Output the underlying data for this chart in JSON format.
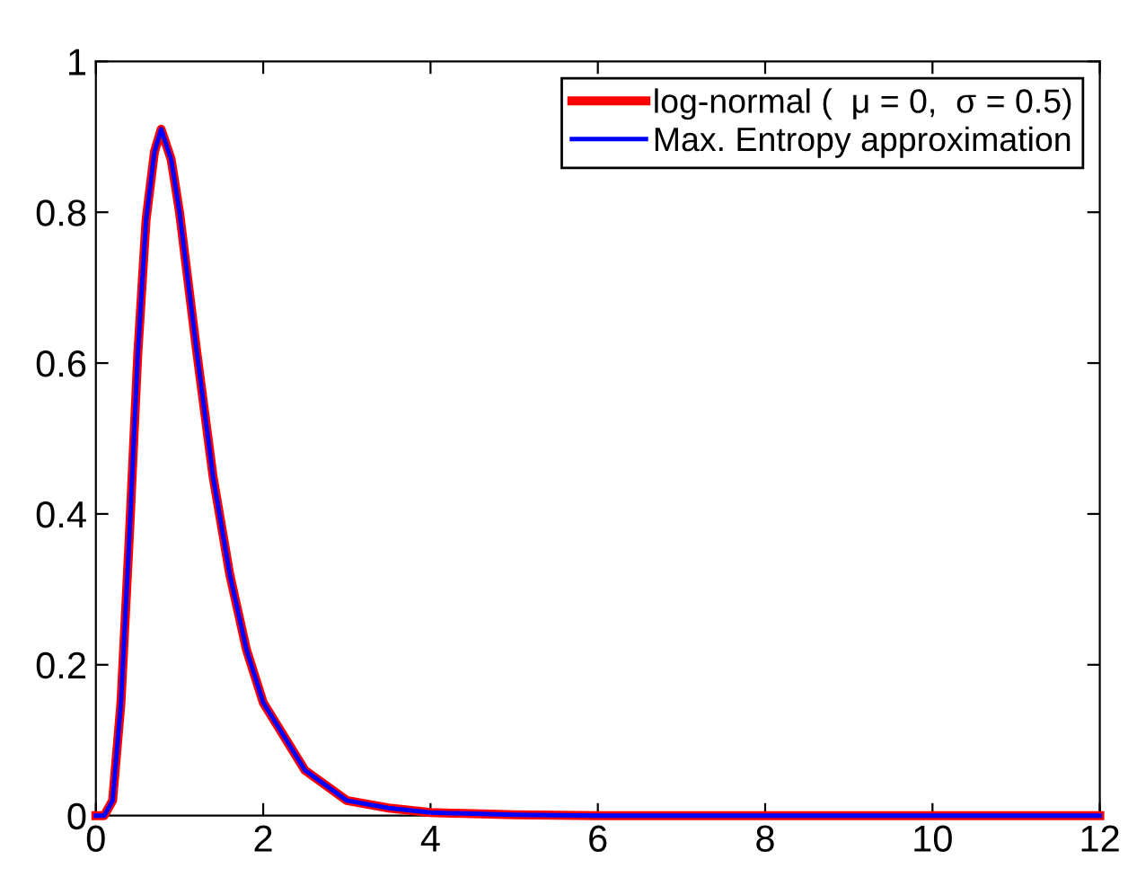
{
  "chart_data": {
    "type": "line",
    "x": [
      0,
      0.1,
      0.2,
      0.3,
      0.4,
      0.5,
      0.6,
      0.7,
      0.78,
      0.9,
      1.0,
      1.2,
      1.4,
      1.6,
      1.8,
      2.0,
      2.5,
      3.0,
      3.5,
      4.0,
      5.0,
      6.0,
      8.0,
      10.0,
      12.0
    ],
    "series": [
      {
        "name": "log-normal (  μ = 0,  σ = 0.5)",
        "color": "#ff0000",
        "values": [
          0,
          0,
          0.02,
          0.15,
          0.37,
          0.61,
          0.79,
          0.88,
          0.91,
          0.87,
          0.8,
          0.62,
          0.45,
          0.32,
          0.22,
          0.15,
          0.06,
          0.02,
          0.01,
          0.004,
          0.001,
          0,
          0,
          0,
          0
        ]
      },
      {
        "name": "Max. Entropy approximation",
        "color": "#0000ff",
        "values": [
          0,
          0,
          0.02,
          0.15,
          0.37,
          0.61,
          0.79,
          0.88,
          0.91,
          0.87,
          0.8,
          0.62,
          0.45,
          0.32,
          0.22,
          0.15,
          0.06,
          0.02,
          0.01,
          0.004,
          0.001,
          0,
          0,
          0,
          0
        ]
      }
    ],
    "xlim": [
      0,
      12
    ],
    "ylim": [
      0,
      1
    ],
    "xticks": [
      0,
      2,
      4,
      6,
      8,
      10,
      12
    ],
    "yticks": [
      0,
      0.2,
      0.4,
      0.6,
      0.8,
      1
    ],
    "grid": false,
    "legend": "top right",
    "marker": "none",
    "line_style": "solid"
  }
}
